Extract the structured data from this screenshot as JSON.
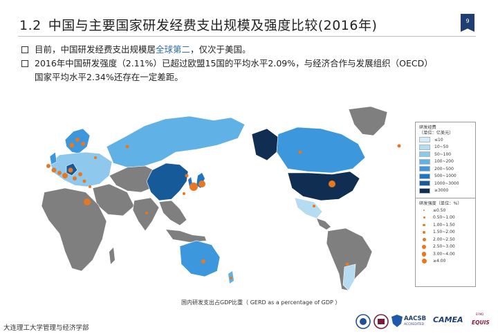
{
  "header": {
    "section_number": "1.2",
    "title": "中国与主要国家研发经费支出规模及强度比较(2016年)",
    "page_number": "9"
  },
  "bullets": [
    {
      "parts": [
        "目前，中国研发经费支出规模居",
        "全球第二",
        "，仅次于美国。"
      ]
    },
    {
      "line1": "2016年中国研发强度（2.11%）已超过欧盟15国的平均水平2.09%，与经济合作与发展组织（OECD）",
      "line2": "国家平均水平2.34%还存在一定差距。"
    }
  ],
  "legend": {
    "expenditure": {
      "title": "研发经费",
      "unit": "（单位：亿美元）",
      "items": [
        {
          "label": "≤10",
          "color": "#d6ecf7"
        },
        {
          "label": "10~50",
          "color": "#b5dcf1"
        },
        {
          "label": "50~100",
          "color": "#8ec8ec"
        },
        {
          "label": "100~200",
          "color": "#5fb1e6"
        },
        {
          "label": "200~500",
          "color": "#3c97dc"
        },
        {
          "label": "500~1000",
          "color": "#1f74c3"
        },
        {
          "label": "1000~3000",
          "color": "#165a9a"
        },
        {
          "label": "≥3000",
          "color": "#0f2e52"
        }
      ]
    },
    "intensity": {
      "title": "研发强度（单位：%）",
      "items": [
        {
          "label": "≤0.50",
          "size": 2
        },
        {
          "label": "0.50~1.00",
          "size": 3
        },
        {
          "label": "1.00~1.50",
          "size": 3.5
        },
        {
          "label": "1.50~2.00",
          "size": 4
        },
        {
          "label": "2.00~2.50",
          "size": 5
        },
        {
          "label": "2.50~3.00",
          "size": 6
        },
        {
          "label": "3.00~4.00",
          "size": 6.5
        },
        {
          "label": "≥4.00",
          "size": 7
        }
      ]
    }
  },
  "map": {
    "caption": "国内研发支出占GDP比重（ GERD as a percentage of GDP ）",
    "colors": {
      "no_data": "#7f7f7f",
      "dot": "#e87722",
      "border": "#ffffff"
    }
  },
  "footer": {
    "institution": "大连理工大学管理与经济学部"
  },
  "logos": {
    "aacsb": "AACSB",
    "aacsb_sub": "ACCREDITED",
    "camea": "CAMEA",
    "equis": "EQUIS",
    "efmd": "EFMD"
  }
}
